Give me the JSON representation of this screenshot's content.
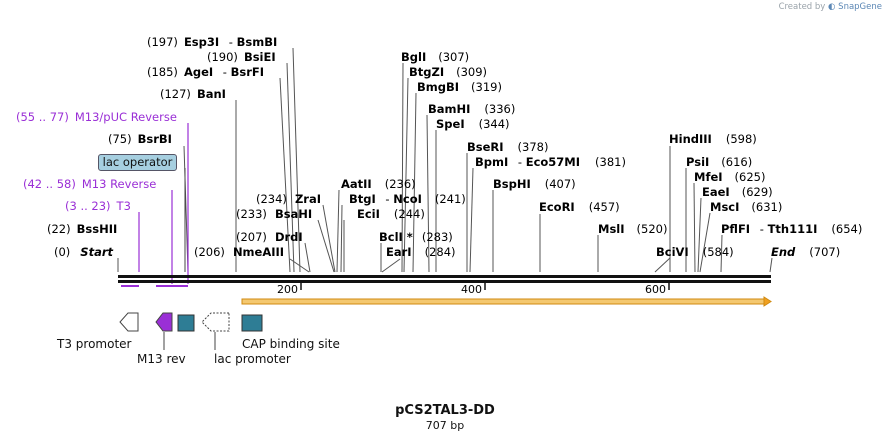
{
  "credit": {
    "prefix": "Created by",
    "brand": "SnapGene"
  },
  "plasmid": {
    "name": "pCS2TAL3-DD",
    "length": "707 bp"
  },
  "ruler": {
    "ticks": [
      "200",
      "400",
      "600"
    ]
  },
  "sites": [
    {
      "num": "(197)",
      "name": "Esp3I",
      "partner": "BsmBI"
    },
    {
      "num": "(190)",
      "name": "BsiEI"
    },
    {
      "num": "(185)",
      "name": "AgeI",
      "partner": "BsrFI"
    },
    {
      "num": "(127)",
      "name": "BanI"
    },
    {
      "num": "(75)",
      "name": "BsrBI"
    },
    {
      "num": "(22)",
      "name": "BssHII"
    },
    {
      "num": "(0)",
      "name": "Start"
    },
    {
      "num": "(234)",
      "name": "ZraI"
    },
    {
      "num": "(233)",
      "name": "BsaHI"
    },
    {
      "num": "(207)",
      "name": "DrdI"
    },
    {
      "num": "(206)",
      "name": "NmeAIII"
    },
    {
      "name": "AatII",
      "num": "(236)"
    },
    {
      "name": "BtgI",
      "partner": "NcoI",
      "num": "(241)"
    },
    {
      "name": "EciI",
      "num": "(244)"
    },
    {
      "name": "BclI *",
      "num": "(283)"
    },
    {
      "name": "EarI",
      "num": "(284)"
    },
    {
      "name": "BglI",
      "num": "(307)"
    },
    {
      "name": "BtgZI",
      "num": "(309)"
    },
    {
      "name": "BmgBI",
      "num": "(319)"
    },
    {
      "name": "BamHI",
      "num": "(336)"
    },
    {
      "name": "SpeI",
      "num": "(344)"
    },
    {
      "name": "BseRI",
      "num": "(378)"
    },
    {
      "name": "BpmI",
      "partner": "Eco57MI",
      "num": "(381)"
    },
    {
      "name": "BspHI",
      "num": "(407)"
    },
    {
      "name": "EcoRI",
      "num": "(457)"
    },
    {
      "name": "MslI",
      "num": "(520)"
    },
    {
      "name": "BciVI",
      "num": "(584)"
    },
    {
      "name": "HindIII",
      "num": "(598)"
    },
    {
      "name": "PsiI",
      "num": "(616)"
    },
    {
      "name": "MfeI",
      "num": "(625)"
    },
    {
      "name": "EaeI",
      "num": "(629)"
    },
    {
      "name": "MscI",
      "num": "(631)"
    },
    {
      "name": "PflFI",
      "partner": "Tth111I",
      "num": "(654)"
    },
    {
      "name": "End",
      "num": "(707)"
    }
  ],
  "primers": [
    {
      "range": "(55 .. 77)",
      "name": "M13/pUC Reverse"
    },
    {
      "range": "(42 .. 58)",
      "name": "M13 Reverse"
    },
    {
      "range": "(3 .. 23)",
      "name": "T3"
    }
  ],
  "features": {
    "lac_operator": "lac operator",
    "t3_promoter": "T3 promoter",
    "m13_rev": "M13 rev",
    "lac_promoter": "lac promoter",
    "cap_site": "CAP binding site"
  },
  "colors": {
    "purple": "#9a2fd6",
    "teal": "#2e7d95",
    "orange": "#f0a020",
    "lac_operator_fill": "#a6cfe0"
  }
}
